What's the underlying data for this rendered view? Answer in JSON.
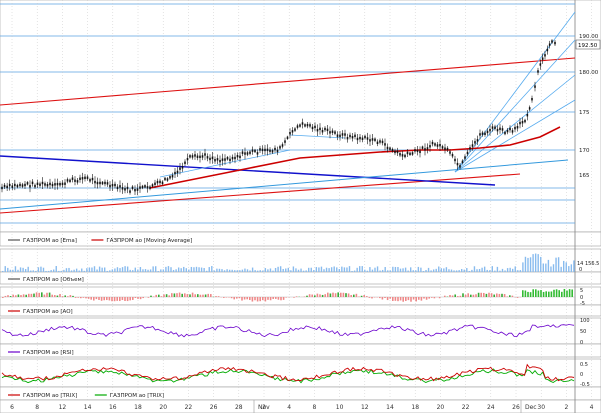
{
  "chart_data": {
    "type": "line",
    "description_free": true,
    "main_panel": {
      "type": "candlestick",
      "y_ticks": [
        "190.00",
        "180.00",
        "175",
        "170",
        "165"
      ],
      "last_price_label": "192.50",
      "legend": [
        {
          "label": "ГАЗПРОМ ао [Ema]",
          "color": "#555555"
        },
        {
          "label": "ГАЗПРОМ ао [Moving Average]",
          "color": "#cc0000"
        }
      ]
    },
    "volume_panel": {
      "type": "bar",
      "y_ticks": [
        "14 156.5",
        "0"
      ],
      "legend": [
        {
          "label": "ГАЗПРОМ ао [Объем]",
          "color": "#555555"
        }
      ]
    },
    "ao_panel": {
      "type": "bar",
      "y_ticks": [
        "5",
        "0",
        "-5"
      ],
      "legend": [
        {
          "label": "ГАЗПРОМ ао [AO]",
          "color": "#cc0000"
        }
      ]
    },
    "rsi_panel": {
      "type": "line",
      "y_ticks": [
        "100",
        "50",
        "0"
      ],
      "legend": [
        {
          "label": "ГАЗПРОМ ао [RSI]",
          "color": "#6a00cc"
        }
      ]
    },
    "trix_panel": {
      "type": "line",
      "y_ticks": [
        "0.5",
        "0",
        "-0.5"
      ],
      "legend": [
        {
          "label": "ГАЗПРОМ ао [TRIX]",
          "color": "#cc0000"
        },
        {
          "label": "ГАЗПРОМ ао [TRIX]",
          "color": "#00aa00"
        }
      ]
    },
    "x_ticks": [
      "6",
      "8",
      "12",
      "14",
      "16",
      "18",
      "20",
      "22",
      "26",
      "28",
      "2",
      "4",
      "8",
      "10",
      "12",
      "14",
      "18",
      "20",
      "22",
      "24",
      "26",
      "30",
      "2",
      "4"
    ],
    "month_labels": [
      "Nov",
      "Dec"
    ]
  }
}
